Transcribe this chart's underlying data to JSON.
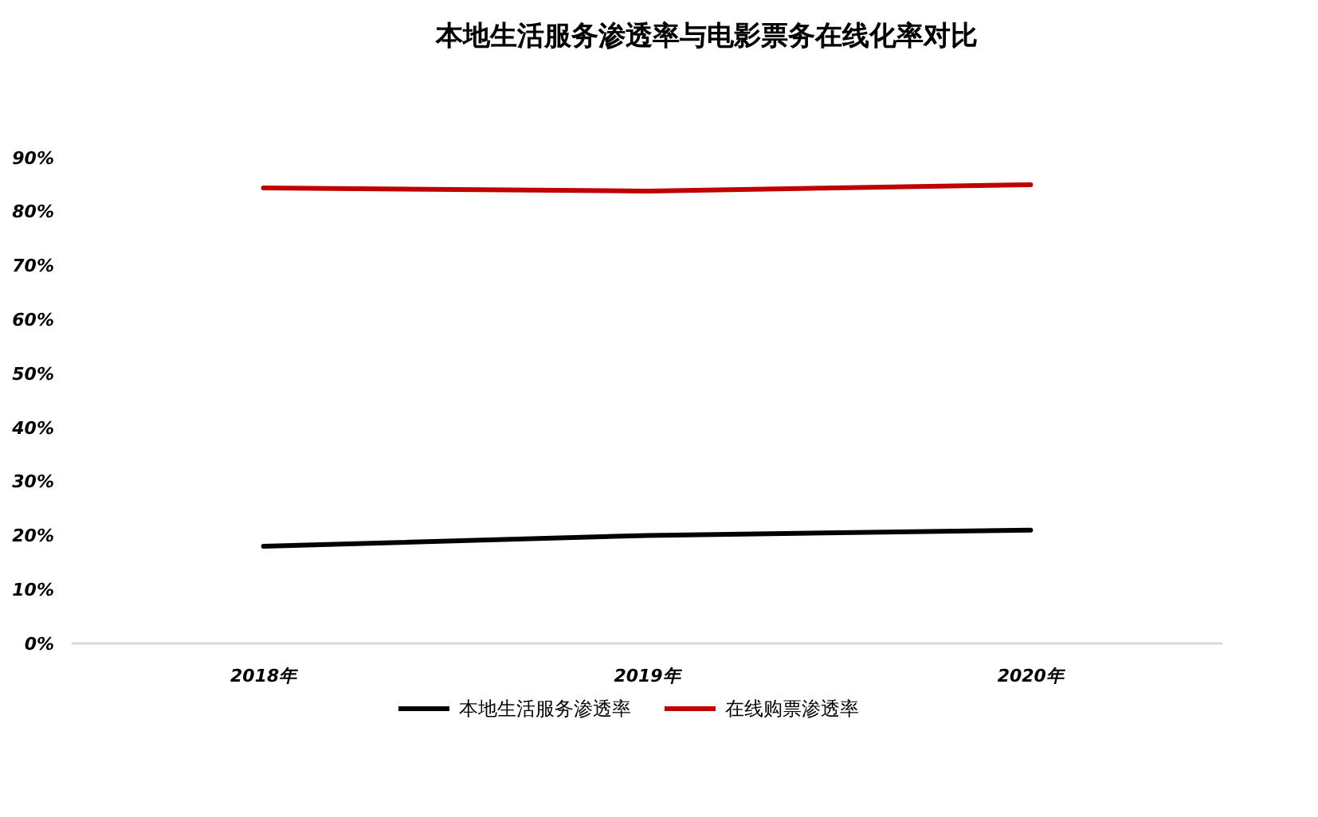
{
  "chart_data": {
    "type": "line",
    "title": "本地生活服务渗透率与电影票务在线化率对比",
    "categories": [
      "2018年",
      "2019年",
      "2020年"
    ],
    "series": [
      {
        "name": "本地生活服务渗透率",
        "color": "#000000",
        "values": [
          18,
          20,
          21
        ]
      },
      {
        "name": "在线购票渗透率",
        "color": "#c00000",
        "values": [
          84.4,
          83.8,
          85
        ]
      }
    ],
    "ylim": [
      0,
      90
    ],
    "yticks": [
      {
        "value": 0,
        "label": "0%"
      },
      {
        "value": 10,
        "label": "10%"
      },
      {
        "value": 20,
        "label": "20%"
      },
      {
        "value": 30,
        "label": "30%"
      },
      {
        "value": 40,
        "label": "40%"
      },
      {
        "value": 50,
        "label": "50%"
      },
      {
        "value": 60,
        "label": "60%"
      },
      {
        "value": 70,
        "label": "70%"
      },
      {
        "value": 80,
        "label": "80%"
      },
      {
        "value": 90,
        "label": "90%"
      }
    ],
    "grid": false,
    "legend": "bottom",
    "marker": "none",
    "line_style": "solid"
  }
}
